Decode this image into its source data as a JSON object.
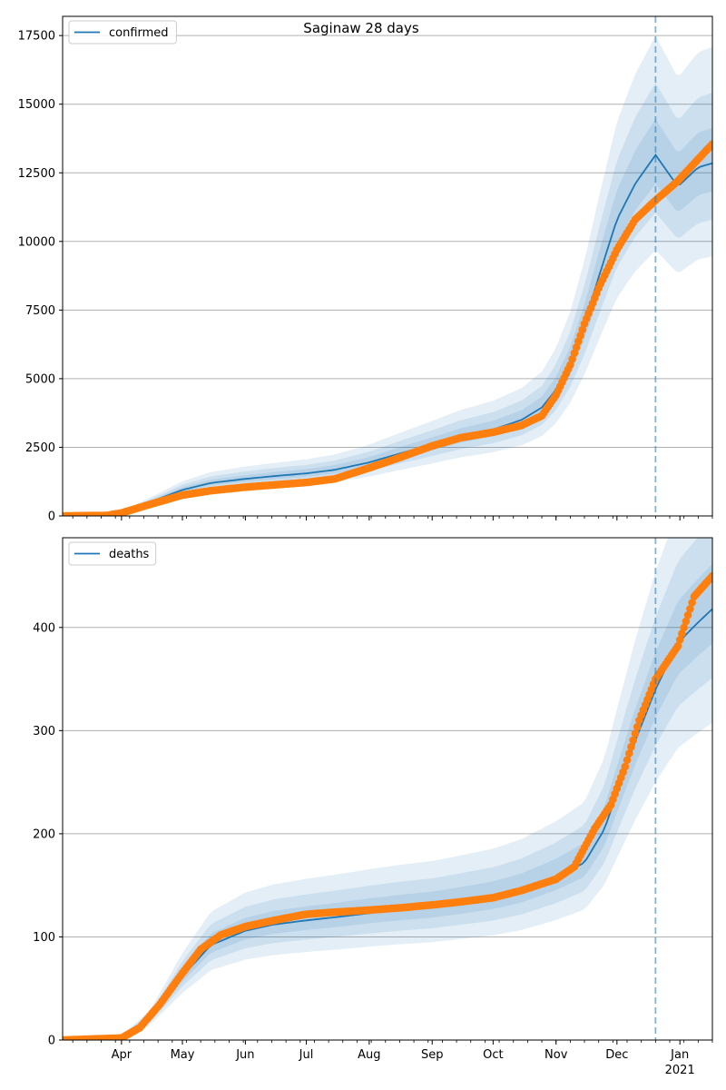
{
  "title": "Saginaw 28 days",
  "colors": {
    "model": "#1f77b4",
    "observed": "#ff7f0e",
    "band": "#1f77b4",
    "grid": "#b0b0b0",
    "forecast_line": "#1f77b4"
  },
  "x_axis": {
    "month_labels": [
      "Apr",
      "May",
      "Jun",
      "Jul",
      "Aug",
      "Sep",
      "Oct",
      "Nov",
      "Dec",
      "Jan"
    ],
    "year_label": "2021",
    "range": [
      "2020-03-03",
      "2021-01-17"
    ],
    "forecast_date": "2020-12-20"
  },
  "chart_data": [
    {
      "type": "line",
      "legend": "confirmed",
      "legend_position": "top-left",
      "ylim": [
        0,
        18200
      ],
      "yticks": [
        0,
        2500,
        5000,
        7500,
        10000,
        12500,
        15000,
        17500
      ],
      "grid": "horizontal",
      "model": {
        "x": [
          "2020-03-03",
          "2020-03-25",
          "2020-04-01",
          "2020-04-15",
          "2020-05-01",
          "2020-05-15",
          "2020-06-01",
          "2020-06-15",
          "2020-07-01",
          "2020-07-15",
          "2020-08-01",
          "2020-08-15",
          "2020-09-01",
          "2020-09-15",
          "2020-10-01",
          "2020-10-15",
          "2020-10-25",
          "2020-11-01",
          "2020-11-08",
          "2020-11-15",
          "2020-11-22",
          "2020-12-01",
          "2020-12-10",
          "2020-12-20",
          "2020-12-31",
          "2021-01-10",
          "2021-01-17"
        ],
        "y": [
          0,
          30,
          120,
          500,
          950,
          1200,
          1350,
          1450,
          1550,
          1680,
          1950,
          2250,
          2600,
          2900,
          3150,
          3500,
          3950,
          4600,
          5600,
          7000,
          8700,
          10800,
          12100,
          13150,
          12000,
          12700,
          12850
        ]
      },
      "bands_relative": [
        0.1,
        0.2,
        0.33
      ],
      "observed": {
        "x": [
          "2020-03-03",
          "2020-03-25",
          "2020-04-01",
          "2020-04-15",
          "2020-05-01",
          "2020-05-15",
          "2020-06-01",
          "2020-06-15",
          "2020-07-01",
          "2020-07-15",
          "2020-08-01",
          "2020-08-15",
          "2020-09-01",
          "2020-09-15",
          "2020-10-01",
          "2020-10-15",
          "2020-10-25",
          "2020-11-01",
          "2020-11-08",
          "2020-11-15",
          "2020-11-22",
          "2020-12-01",
          "2020-12-10",
          "2020-12-20",
          "2020-12-31",
          "2021-01-10",
          "2021-01-17"
        ],
        "y": [
          0,
          20,
          110,
          420,
          760,
          920,
          1050,
          1130,
          1220,
          1350,
          1750,
          2100,
          2550,
          2850,
          3050,
          3300,
          3650,
          4400,
          5500,
          7000,
          8300,
          9700,
          10800,
          11500,
          12200,
          13000,
          13550
        ]
      }
    },
    {
      "type": "line",
      "legend": "deaths",
      "legend_position": "top-left",
      "ylim": [
        0,
        487
      ],
      "yticks": [
        0,
        100,
        200,
        300,
        400
      ],
      "grid": "horizontal",
      "model": {
        "x": [
          "2020-03-03",
          "2020-04-01",
          "2020-04-15",
          "2020-05-01",
          "2020-05-15",
          "2020-06-01",
          "2020-06-15",
          "2020-07-01",
          "2020-07-15",
          "2020-08-01",
          "2020-08-15",
          "2020-09-01",
          "2020-09-15",
          "2020-10-01",
          "2020-10-15",
          "2020-11-01",
          "2020-11-15",
          "2020-11-25",
          "2020-12-01",
          "2020-12-10",
          "2020-12-20",
          "2020-12-31",
          "2021-01-10",
          "2021-01-17"
        ],
        "y": [
          0,
          2,
          20,
          62,
          92,
          106,
          112,
          116,
          119,
          123,
          126,
          129,
          133,
          138,
          145,
          158,
          172,
          205,
          240,
          290,
          340,
          385,
          405,
          418
        ]
      },
      "bands_relative": [
        0.1,
        0.2,
        0.33
      ],
      "observed": {
        "x": [
          "2020-03-03",
          "2020-04-01",
          "2020-04-10",
          "2020-04-20",
          "2020-05-01",
          "2020-05-10",
          "2020-05-20",
          "2020-06-01",
          "2020-06-15",
          "2020-07-01",
          "2020-07-15",
          "2020-08-01",
          "2020-08-15",
          "2020-09-01",
          "2020-09-15",
          "2020-10-01",
          "2020-10-15",
          "2020-11-01",
          "2020-11-10",
          "2020-11-20",
          "2020-11-28",
          "2020-12-05",
          "2020-12-12",
          "2020-12-20",
          "2020-12-31",
          "2021-01-08",
          "2021-01-17"
        ],
        "y": [
          0,
          2,
          12,
          35,
          65,
          88,
          102,
          110,
          116,
          122,
          124,
          126,
          128,
          131,
          134,
          138,
          145,
          156,
          168,
          205,
          228,
          265,
          310,
          350,
          382,
          430,
          450
        ]
      }
    }
  ]
}
